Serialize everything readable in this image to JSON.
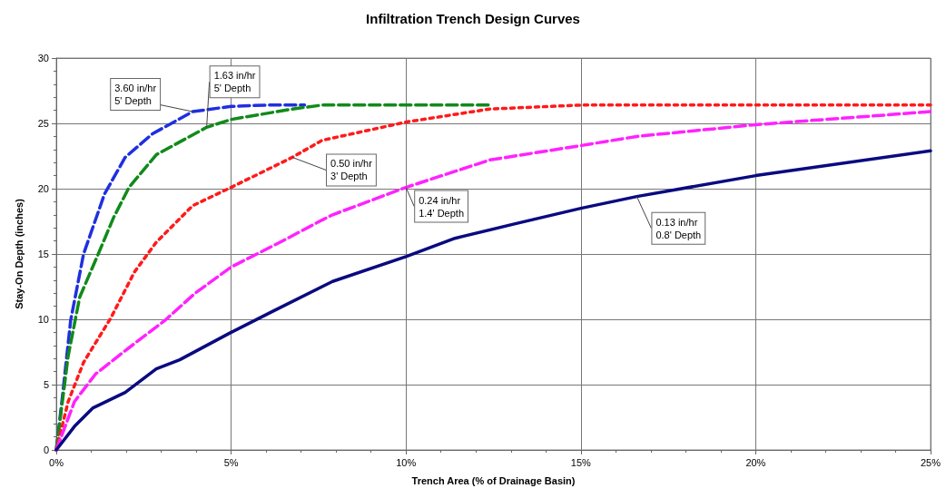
{
  "chart_data": {
    "type": "line",
    "title": "Infiltration Trench Design Curves",
    "xlabel": "Trench Area (% of Drainage Basin)",
    "ylabel": "Stay-On Depth (inches)",
    "xlim": [
      0,
      25
    ],
    "xticks": [
      {
        "value": 0,
        "label": "0%"
      },
      {
        "value": 5,
        "label": "5%"
      },
      {
        "value": 10,
        "label": "10%"
      },
      {
        "value": 15,
        "label": "15%"
      },
      {
        "value": 20,
        "label": "20%"
      },
      {
        "value": 25,
        "label": "25%"
      }
    ],
    "ylim": [
      0,
      30
    ],
    "yticks": [
      0,
      5,
      10,
      15,
      20,
      25,
      30
    ],
    "grid": true,
    "legend": false,
    "marker": "none",
    "series": [
      {
        "name": "3.60 in/hr\n5' Depth",
        "color": "#1f2fe0",
        "line_style": "dashed",
        "x": [
          0,
          0.16,
          0.41,
          0.78,
          1.38,
          1.97,
          2.75,
          3.9,
          5,
          6,
          7.1
        ],
        "values": [
          0,
          3.7,
          9.9,
          15,
          19.6,
          22.4,
          24.2,
          25.9,
          26.3,
          26.4,
          26.4
        ]
      },
      {
        "name": "1.63 in/hr\n5' Depth",
        "color": "#118a1a",
        "line_style": "dashed",
        "x": [
          0,
          0.34,
          0.67,
          1.2,
          1.64,
          2.08,
          2.86,
          4.3,
          5,
          6.75,
          7.6,
          10,
          12.4
        ],
        "values": [
          0,
          7.2,
          11.7,
          15,
          17.8,
          20.1,
          22.6,
          24.7,
          25.3,
          26.1,
          26.4,
          26.4,
          26.4
        ]
      },
      {
        "name": "0.50 in/hr\n3' Depth",
        "color": "#ff1a1a",
        "line_style": "dotted",
        "x": [
          0,
          0.34,
          0.78,
          1.56,
          2.23,
          2.86,
          3.9,
          5,
          6.75,
          7.6,
          10,
          12.4,
          15,
          20,
          25
        ],
        "values": [
          0,
          3.7,
          6.7,
          10.1,
          13.6,
          15.9,
          18.7,
          20.1,
          22.4,
          23.7,
          25.1,
          26.1,
          26.4,
          26.4,
          26.4
        ]
      },
      {
        "name": "0.24 in/hr\n1.4' Depth",
        "color": "#ff22ff",
        "line_style": "dashed",
        "x": [
          0,
          0.52,
          1.12,
          1.97,
          3.1,
          3.97,
          5,
          6.4,
          7.6,
          7.9,
          10,
          12.4,
          15,
          16.6,
          20,
          25
        ],
        "values": [
          0,
          3.7,
          5.8,
          7.6,
          9.9,
          12,
          14,
          15.9,
          17.6,
          18,
          20.1,
          22.2,
          23.3,
          24,
          24.9,
          25.9
        ]
      },
      {
        "name": "0.13 in/hr\n0.8' Depth",
        "color": "#0a0a80",
        "line_style": "solid",
        "x": [
          0,
          0.52,
          1.04,
          1.97,
          2.86,
          3.53,
          5,
          6.18,
          7.9,
          10,
          11.4,
          13.1,
          15,
          16.6,
          20,
          25
        ],
        "values": [
          0,
          1.8,
          3.2,
          4.4,
          6.2,
          6.9,
          9,
          10.6,
          12.9,
          14.8,
          16.2,
          17.3,
          18.5,
          19.4,
          21,
          22.9
        ]
      }
    ]
  }
}
